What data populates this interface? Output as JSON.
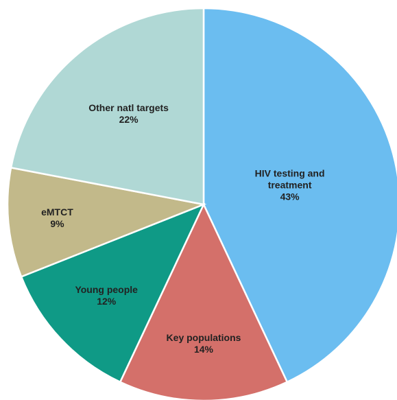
{
  "chart_data": {
    "type": "pie",
    "categories": [
      "HIV testing and treatment",
      "Key populations",
      "Young people",
      "eMTCT",
      "Other natl targets"
    ],
    "values": [
      43,
      14,
      12,
      9,
      22
    ],
    "value_labels": [
      "43%",
      "14%",
      "12%",
      "9%",
      "22%"
    ],
    "colors": [
      "#6bbdf0",
      "#d4706a",
      "#0f9a86",
      "#c2b98a",
      "#b0d8d5"
    ]
  }
}
